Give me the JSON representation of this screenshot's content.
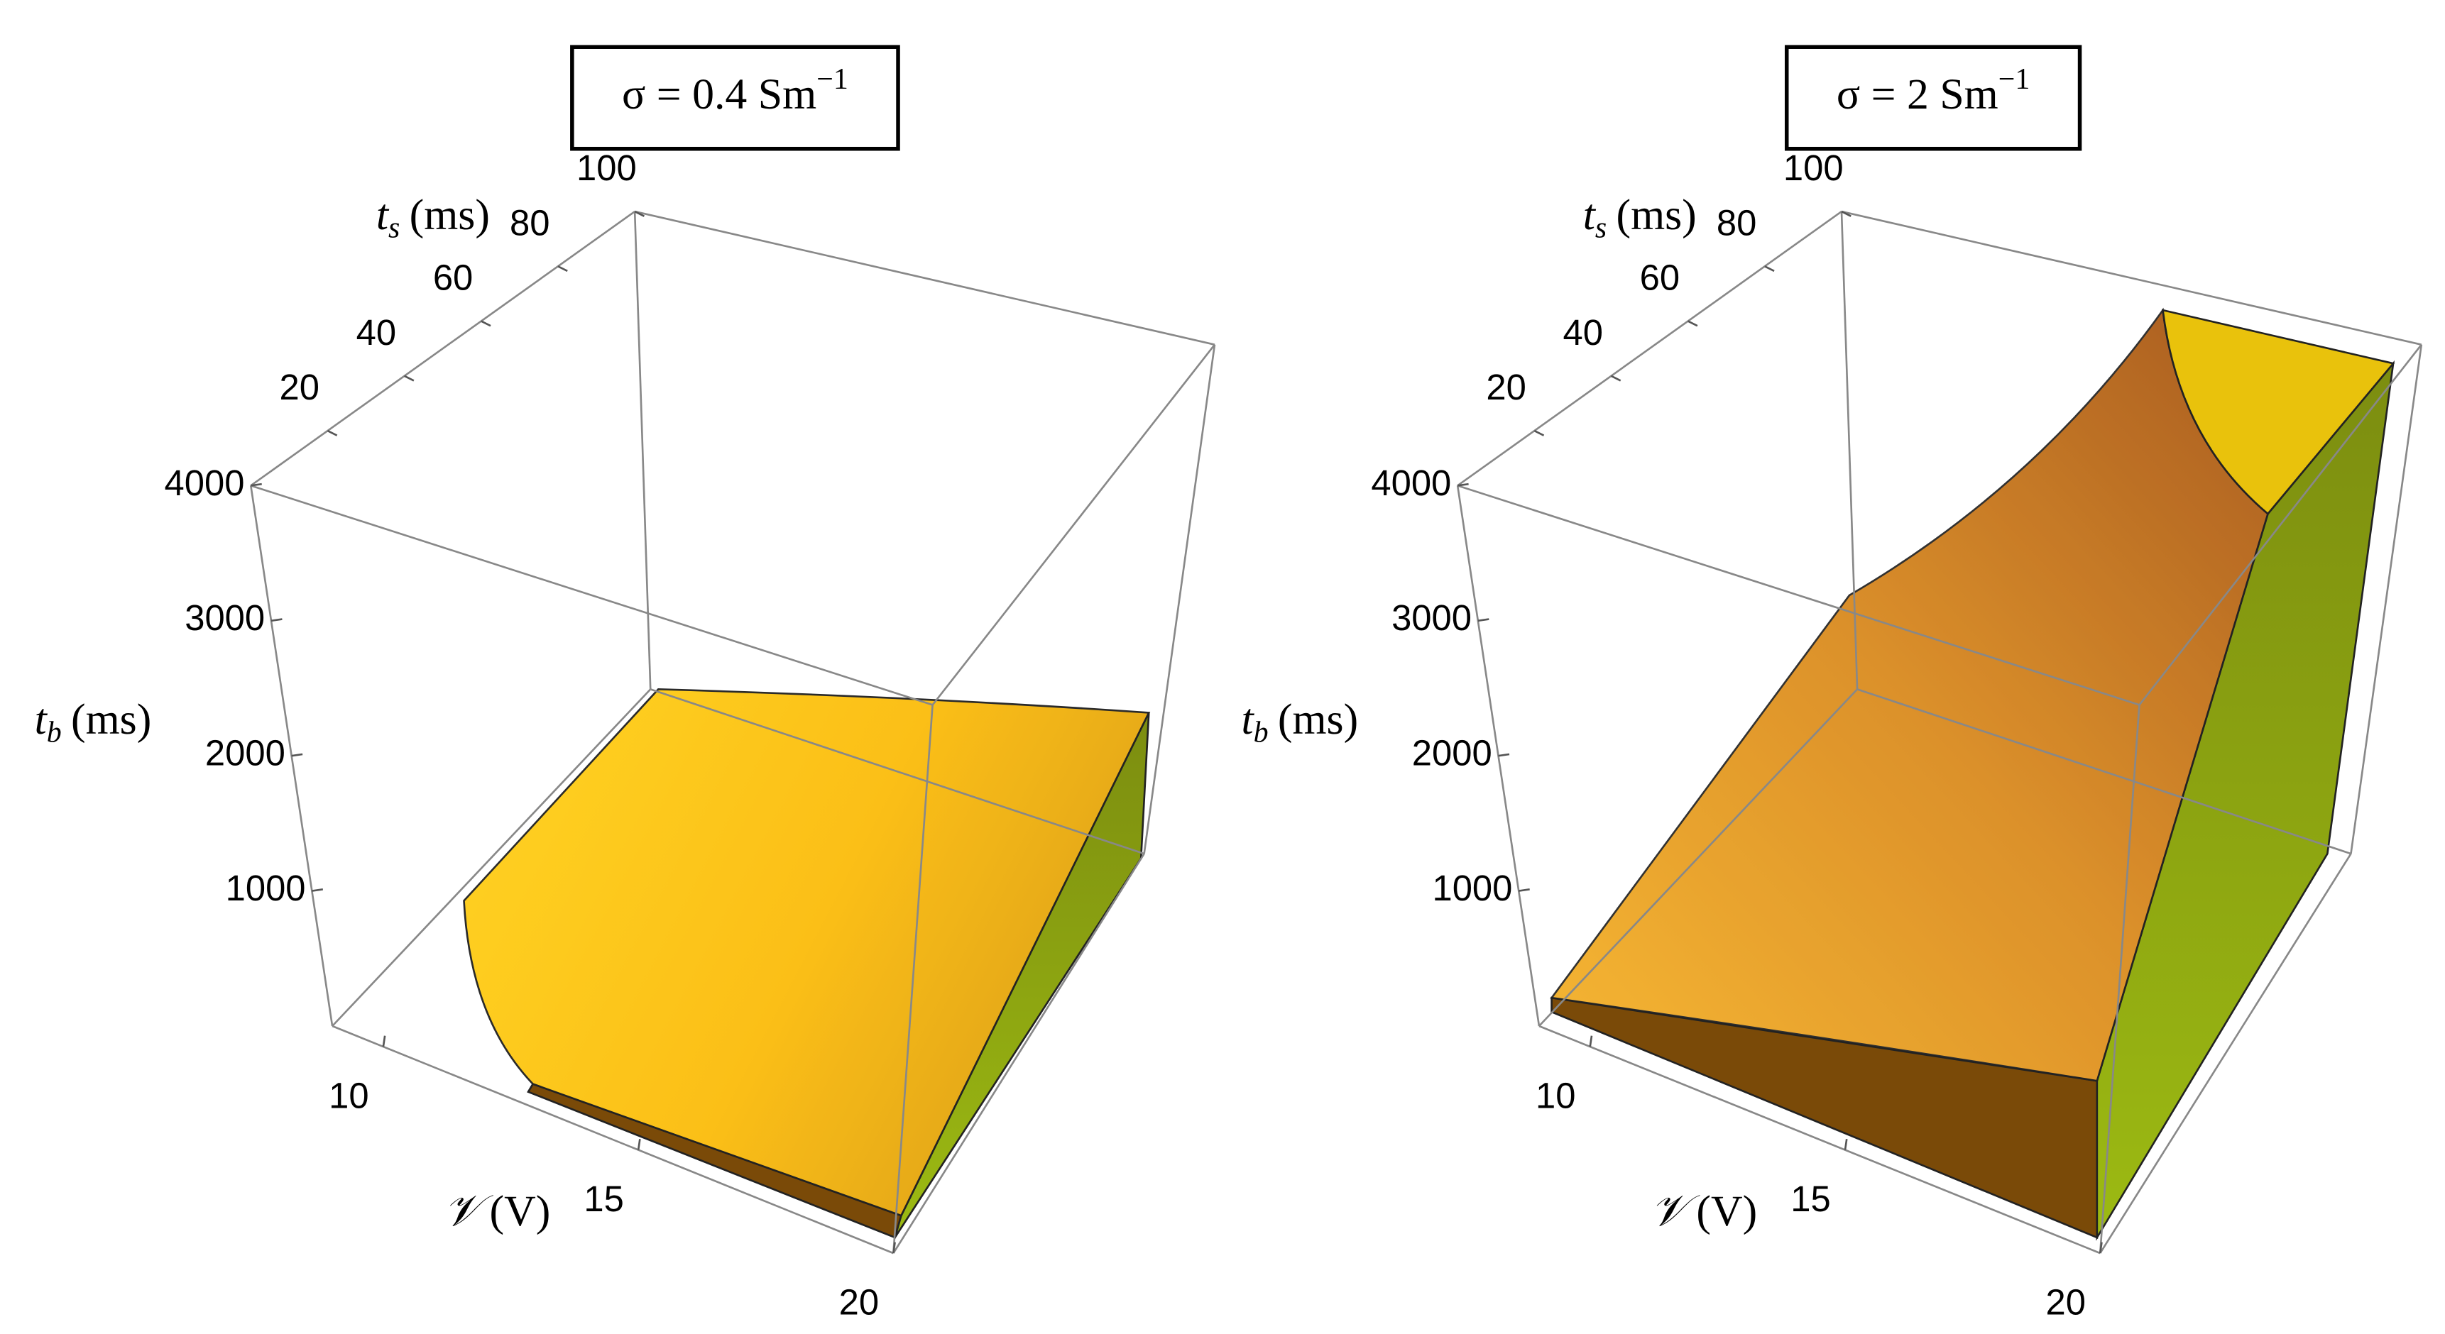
{
  "chart_data": [
    {
      "type": "surface3d",
      "title": {
        "text": "σ = 0.4 Sm",
        "superscript": "−1"
      },
      "x_label": {
        "symbol": "𝒱",
        "unit": "(V)"
      },
      "y_label": {
        "symbol": "t",
        "subscript": "s",
        "unit": "(ms)"
      },
      "z_label": {
        "symbol": "t",
        "subscript": "b",
        "unit": "(ms)"
      },
      "xlim": [
        9,
        20
      ],
      "xticks": [
        10,
        15,
        20
      ],
      "ylim": [
        0,
        100
      ],
      "yticks": [
        20,
        40,
        60,
        80,
        100
      ],
      "zlim": [
        0,
        4000
      ],
      "zticks": [
        1000,
        2000,
        3000,
        4000
      ]
    },
    {
      "type": "surface3d",
      "title": {
        "text": "σ = 2 Sm",
        "superscript": "−1"
      },
      "x_label": {
        "symbol": "𝒱",
        "unit": "(V)"
      },
      "y_label": {
        "symbol": "t",
        "subscript": "s",
        "unit": "(ms)"
      },
      "z_label": {
        "symbol": "t",
        "subscript": "b",
        "unit": "(ms)"
      },
      "xlim": [
        9,
        20
      ],
      "xticks": [
        10,
        15,
        20
      ],
      "ylim": [
        0,
        100
      ],
      "yticks": [
        20,
        40,
        60,
        80,
        100
      ],
      "zlim": [
        0,
        4000
      ],
      "zticks": [
        1000,
        2000,
        3000,
        4000
      ]
    }
  ]
}
